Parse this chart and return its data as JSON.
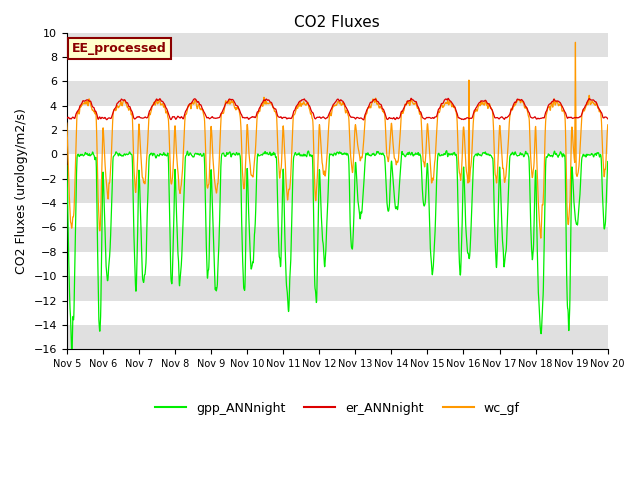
{
  "title": "CO2 Fluxes",
  "ylabel": "CO2 Fluxes (urology/m2/s)",
  "ylim": [
    -16,
    10
  ],
  "yticks": [
    -16,
    -14,
    -12,
    -10,
    -8,
    -6,
    -4,
    -2,
    0,
    2,
    4,
    6,
    8,
    10
  ],
  "n_days": 15,
  "pts_per_day": 144,
  "x_tick_labels": [
    "Nov 5",
    "Nov 6",
    "Nov 7",
    "Nov 8",
    "Nov 9",
    "Nov 10",
    "Nov 11",
    "Nov 12",
    "Nov 13",
    "Nov 14",
    "Nov 15",
    "Nov 16",
    "Nov 17",
    "Nov 18",
    "Nov 19",
    "Nov 20"
  ],
  "gpp_color": "#00ee00",
  "er_color": "#dd0000",
  "wc_color": "#ff9900",
  "bg_color": "#ffffff",
  "strip_color": "#e0e0e0",
  "legend_labels": [
    "gpp_ANNnight",
    "er_ANNnight",
    "wc_gf"
  ],
  "annotation_text": "EE_processed",
  "annotation_bg": "#ffffcc",
  "annotation_border": "#8b0000",
  "title_fontsize": 11,
  "axis_fontsize": 9,
  "tick_fontsize": 8,
  "figsize": [
    6.4,
    4.8
  ],
  "dpi": 100
}
